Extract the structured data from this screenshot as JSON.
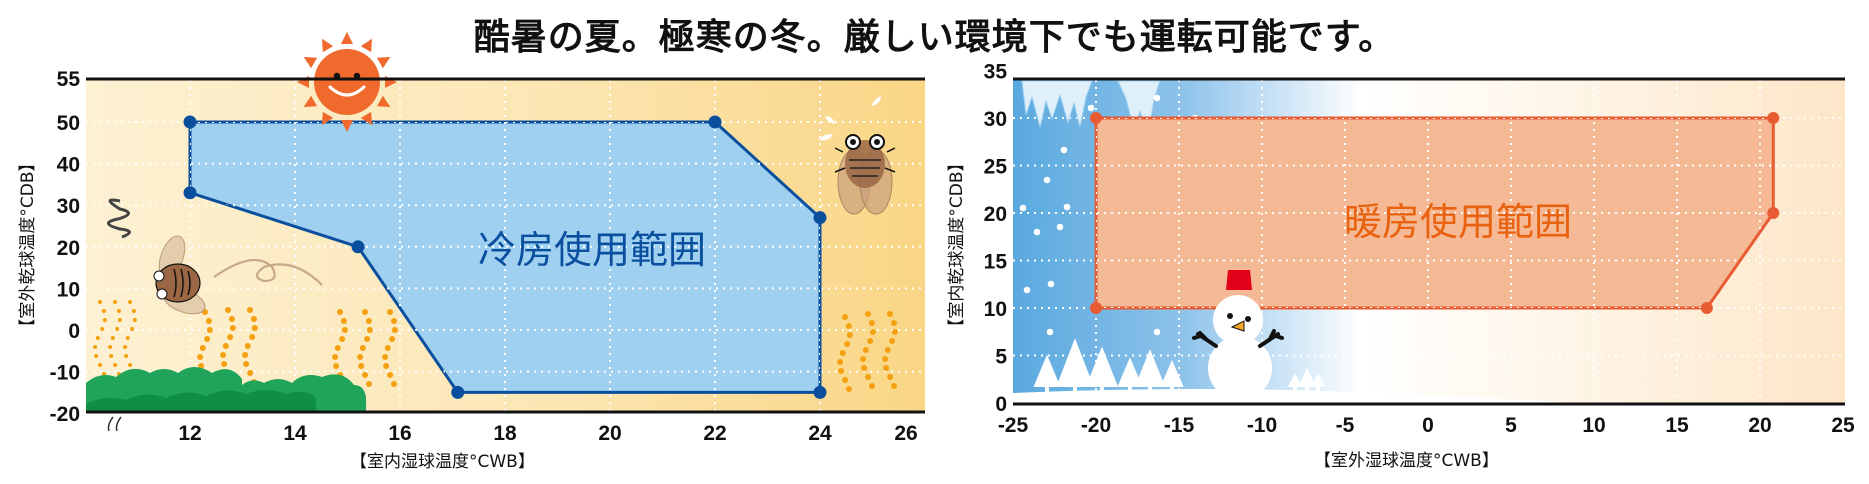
{
  "title": "酷暑の夏。極寒の冬。厳しい環境下でも運転可能です。",
  "charts": {
    "cooling": {
      "region_label": "冷房使用範囲",
      "xlabel": "【室内湿球温度°CWB】",
      "ylabel": "【室外乾球温度°CDB】",
      "colors": {
        "fill": "#a0d0f0",
        "stroke": "#0a4f9e",
        "label": "#0a4f9e",
        "bg_left": "#fdf0cf",
        "bg_right": "#fad889"
      }
    },
    "heating": {
      "region_label": "暖房使用範囲",
      "xlabel": "【室外湿球温度°CWB】",
      "ylabel": "【室内乾球温度°CDB】",
      "colors": {
        "fill": "#f6b995",
        "stroke": "#e85c34",
        "label": "#e8620f",
        "bg_left": "#5aa9df",
        "bg_mid": "#ffffff",
        "bg_right": "#fde8cc"
      }
    }
  },
  "chart_data": [
    {
      "type": "area",
      "title": "冷房使用範囲",
      "xlabel": "【室内湿球温度°CWB】",
      "ylabel": "【室外乾球温度°CDB】",
      "x_ticks": [
        12,
        14,
        16,
        18,
        20,
        22,
        24,
        26
      ],
      "y_ticks": [
        55,
        50,
        40,
        30,
        20,
        10,
        0,
        -10,
        -20
      ],
      "xlim": [
        10,
        26.3
      ],
      "ylim": [
        -20,
        55
      ],
      "grid": true,
      "series": [
        {
          "name": "冷房使用範囲",
          "polygon": [
            [
              12,
              50
            ],
            [
              22,
              50
            ],
            [
              24,
              27
            ],
            [
              24,
              -15
            ],
            [
              17.1,
              -15
            ],
            [
              15.2,
              20
            ],
            [
              12,
              33
            ]
          ]
        }
      ]
    },
    {
      "type": "area",
      "title": "暖房使用範囲",
      "xlabel": "【室外湿球温度°CWB】",
      "ylabel": "【室内乾球温度°CDB】",
      "x_ticks": [
        -25,
        -20,
        -15,
        -10,
        -5,
        0,
        5,
        10,
        15,
        20,
        25
      ],
      "y_ticks": [
        35,
        30,
        25,
        20,
        15,
        10,
        5,
        0
      ],
      "xlim": [
        -25,
        25.5
      ],
      "ylim": [
        0,
        35
      ],
      "grid": true,
      "series": [
        {
          "name": "暖房使用範囲",
          "polygon": [
            [
              -20,
              30
            ],
            [
              20.8,
              30
            ],
            [
              20.8,
              20
            ],
            [
              16.8,
              10
            ],
            [
              -20,
              10
            ]
          ]
        }
      ]
    }
  ]
}
